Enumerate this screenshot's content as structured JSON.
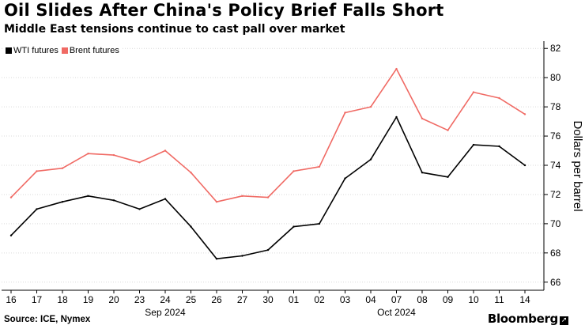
{
  "header": {
    "title": "Oil Slides After China's Policy Brief Falls Short",
    "subtitle": "Middle East tensions continue to cast pall over market"
  },
  "footer": {
    "source": "Source: ICE, Nymex",
    "brand": "Bloomberg"
  },
  "colors": {
    "wti": "#000000",
    "brent": "#f06a64",
    "gridline": "#d9d9d9"
  },
  "chart_data": {
    "type": "line",
    "title": "Oil Slides After China's Policy Brief Falls Short",
    "subtitle": "Middle East tensions continue to cast pall over market",
    "ylabel": "Dollars per barrel",
    "ylim": [
      65.5,
      82.5
    ],
    "yticks": [
      66,
      68,
      70,
      72,
      74,
      76,
      78,
      80,
      82
    ],
    "y_axis_position": "right",
    "legend_position": "top-left",
    "grid": "horizontal",
    "x_categories": [
      "16",
      "17",
      "18",
      "19",
      "20",
      "23",
      "24",
      "25",
      "26",
      "27",
      "30",
      "01",
      "02",
      "03",
      "04",
      "07",
      "08",
      "09",
      "10",
      "11",
      "14"
    ],
    "x_month_labels": [
      {
        "label": "Sep 2024",
        "at": "24"
      },
      {
        "label": "Oct 2024",
        "at": "07"
      }
    ],
    "series": [
      {
        "name": "WTI futures",
        "color": "#000000",
        "x": [
          "16",
          "17",
          "18",
          "19",
          "20",
          "23",
          "24",
          "25",
          "26",
          "27",
          "30",
          "01",
          "02",
          "03",
          "04",
          "07",
          "08",
          "09",
          "10",
          "11",
          "14"
        ],
        "values": [
          69.2,
          71.0,
          71.5,
          71.9,
          71.6,
          71.0,
          71.7,
          69.8,
          67.6,
          67.8,
          68.2,
          69.8,
          70.0,
          73.1,
          74.4,
          77.3,
          73.5,
          73.2,
          75.4,
          75.3,
          74.0
        ]
      },
      {
        "name": "Brent futures",
        "color": "#f06a64",
        "x": [
          "16",
          "17",
          "18",
          "19",
          "20",
          "23",
          "24",
          "25",
          "26",
          "27",
          "30",
          "01",
          "02",
          "03",
          "04",
          "07",
          "08",
          "09",
          "10",
          "11",
          "14"
        ],
        "values": [
          71.8,
          73.6,
          73.8,
          74.8,
          74.7,
          74.2,
          75.0,
          73.5,
          71.5,
          71.9,
          71.8,
          73.6,
          73.9,
          77.6,
          78.0,
          80.6,
          77.2,
          76.4,
          79.0,
          78.6,
          77.5
        ]
      }
    ]
  }
}
